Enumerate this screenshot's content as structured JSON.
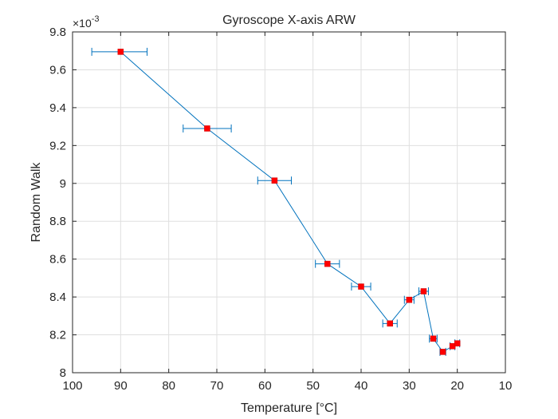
{
  "chart_data": {
    "type": "scatter",
    "title": "Gyroscope X-axis ARW",
    "xlabel": "Temperature [°C]",
    "ylabel": "Random Walk",
    "y_exponent_label": "×10",
    "y_exponent_power": "-3",
    "x_reversed": true,
    "xlim": [
      10,
      100
    ],
    "ylim": [
      8.0,
      9.8
    ],
    "x_ticks": [
      "100",
      "90",
      "80",
      "70",
      "60",
      "50",
      "40",
      "30",
      "20",
      "10"
    ],
    "y_ticks": [
      "8",
      "8.2",
      "8.4",
      "8.6",
      "8.8",
      "9",
      "9.2",
      "9.4",
      "9.6",
      "9.8"
    ],
    "grid": true,
    "series": [
      {
        "line_color": "#0072BD",
        "marker_color": "#FF0000",
        "points": [
          {
            "x": 90,
            "y": 9.695,
            "x_err_low": 96,
            "x_err_high": 84.5
          },
          {
            "x": 72,
            "y": 9.29,
            "x_err_low": 77,
            "x_err_high": 67
          },
          {
            "x": 58,
            "y": 9.015,
            "x_err_low": 61.5,
            "x_err_high": 54.5
          },
          {
            "x": 47,
            "y": 8.575,
            "x_err_low": 49.5,
            "x_err_high": 44.5
          },
          {
            "x": 40,
            "y": 8.455,
            "x_err_low": 42,
            "x_err_high": 38
          },
          {
            "x": 34,
            "y": 8.26,
            "x_err_low": 35.5,
            "x_err_high": 32.5
          },
          {
            "x": 30,
            "y": 8.385,
            "x_err_low": 31,
            "x_err_high": 29
          },
          {
            "x": 27,
            "y": 8.43,
            "x_err_low": 28,
            "x_err_high": 26
          },
          {
            "x": 25,
            "y": 8.18,
            "x_err_low": 25.8,
            "x_err_high": 24.2
          },
          {
            "x": 23,
            "y": 8.11,
            "x_err_low": 23.6,
            "x_err_high": 22.4
          },
          {
            "x": 21,
            "y": 8.14,
            "x_err_low": 21.5,
            "x_err_high": 20.5
          },
          {
            "x": 20,
            "y": 8.155,
            "x_err_low": 20.5,
            "x_err_high": 19.5
          }
        ]
      }
    ]
  }
}
